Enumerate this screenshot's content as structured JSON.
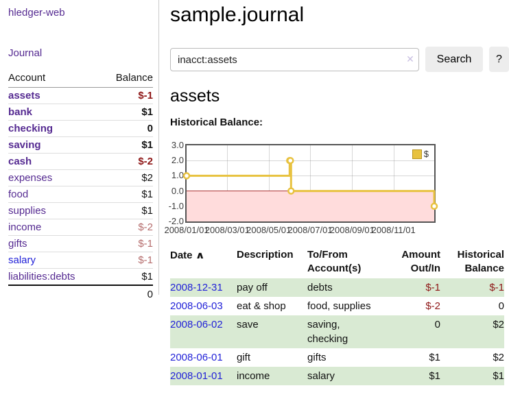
{
  "colors": {
    "purple": "#552a91",
    "blue": "#2323d8",
    "neg": "#8e1717",
    "negsoft": "#b56c6c",
    "rowgreen": "#d9ead3",
    "gold": "#e8c240",
    "goldborder": "#b8941f",
    "pink": "#ffdcdc",
    "zero": "#aa3333",
    "border": "#545454"
  },
  "sidebar": {
    "app_title": "hledger-web",
    "journal_link": "Journal",
    "accounts_table": {
      "col_account": "Account",
      "col_balance": "Balance",
      "rows": [
        {
          "name": "assets",
          "indent": 1,
          "bold": true,
          "balance": "$-1",
          "balance_class": "neg-strong"
        },
        {
          "name": "bank",
          "indent": 2,
          "bold": true,
          "balance": "$1",
          "balance_class": ""
        },
        {
          "name": "checking",
          "indent": 3,
          "bold": true,
          "balance": "0",
          "balance_class": ""
        },
        {
          "name": "saving",
          "indent": 3,
          "bold": true,
          "balance": "$1",
          "balance_class": ""
        },
        {
          "name": "cash",
          "indent": 2,
          "bold": true,
          "balance": "$-2",
          "balance_class": "neg-strong"
        },
        {
          "name": "expenses",
          "indent": 1,
          "bold": false,
          "balance": "$2",
          "balance_class": ""
        },
        {
          "name": "food",
          "indent": 2,
          "bold": false,
          "balance": "$1",
          "balance_class": ""
        },
        {
          "name": "supplies",
          "indent": 2,
          "bold": false,
          "balance": "$1",
          "balance_class": ""
        },
        {
          "name": "income",
          "indent": 1,
          "bold": false,
          "balance": "$-2",
          "balance_class": "neg-soft"
        },
        {
          "name": "gifts",
          "indent": 2,
          "bold": false,
          "balance": "$-1",
          "balance_class": "neg-soft"
        },
        {
          "name": "salary",
          "indent": 2,
          "bold": false,
          "balance": "$-1",
          "balance_class": "neg-soft",
          "link_color": "blue"
        },
        {
          "name": "liabilities:debts",
          "indent": 1,
          "bold": false,
          "balance": "$1",
          "balance_class": ""
        }
      ],
      "total": "0"
    }
  },
  "main": {
    "title": "sample.journal",
    "search": {
      "value": "inacct:assets",
      "clear_icon": "✕",
      "search_button": "Search",
      "help_button": "?"
    },
    "account_heading": "assets",
    "chart_label": "Historical Balance:"
  },
  "chart_data": {
    "type": "line",
    "title": "Historical Balance",
    "step": true,
    "legend": [
      "$"
    ],
    "legend_position": "top-right",
    "x_range": [
      "2008-01-01",
      "2008-12-31"
    ],
    "y_range": [
      -2,
      3
    ],
    "y_ticks": [
      3.0,
      2.0,
      1.0,
      0.0,
      -1.0,
      -2.0
    ],
    "x_ticks": [
      {
        "date": "2008-01-01",
        "label": "2008/01/01"
      },
      {
        "date": "2008-03-01",
        "label": "2008/03/01"
      },
      {
        "date": "2008-05-01",
        "label": "2008/05/01"
      },
      {
        "date": "2008-07-01",
        "label": "2008/07/01"
      },
      {
        "date": "2008-09-01",
        "label": "2008/09/01"
      },
      {
        "date": "2008-11-01",
        "label": "2008/11/01"
      }
    ],
    "series": [
      {
        "name": "$",
        "color": "#e8c240",
        "points": [
          [
            "2008-01-01",
            1
          ],
          [
            "2008-06-01",
            2
          ],
          [
            "2008-06-02",
            2
          ],
          [
            "2008-06-03",
            0
          ],
          [
            "2008-12-31",
            -1
          ]
        ]
      }
    ],
    "negative_region": true,
    "grid": true
  },
  "register": {
    "headers": {
      "date": "Date",
      "sort_icon": "∧",
      "description": "Description",
      "accounts": "To/From Account(s)",
      "amount": "Amount Out/In",
      "balance": "Historical Balance"
    },
    "rows": [
      {
        "date": "2008-12-31",
        "description": "pay off",
        "accounts": "debts",
        "amount": "$-1",
        "amount_negative": true,
        "balance": "$-1",
        "balance_negative": true,
        "shade": true
      },
      {
        "date": "2008-06-03",
        "description": "eat & shop",
        "accounts": "food, supplies",
        "amount": "$-2",
        "amount_negative": true,
        "balance": "0",
        "balance_negative": false,
        "shade": false
      },
      {
        "date": "2008-06-02",
        "description": "save",
        "accounts": "saving,\nchecking",
        "amount": "0",
        "amount_negative": false,
        "balance": "$2",
        "balance_negative": false,
        "shade": true
      },
      {
        "date": "2008-06-01",
        "description": "gift",
        "accounts": "gifts",
        "amount": "$1",
        "amount_negative": false,
        "balance": "$2",
        "balance_negative": false,
        "shade": false
      },
      {
        "date": "2008-01-01",
        "description": "income",
        "accounts": "salary",
        "amount": "$1",
        "amount_negative": false,
        "balance": "$1",
        "balance_negative": false,
        "shade": true
      }
    ]
  }
}
